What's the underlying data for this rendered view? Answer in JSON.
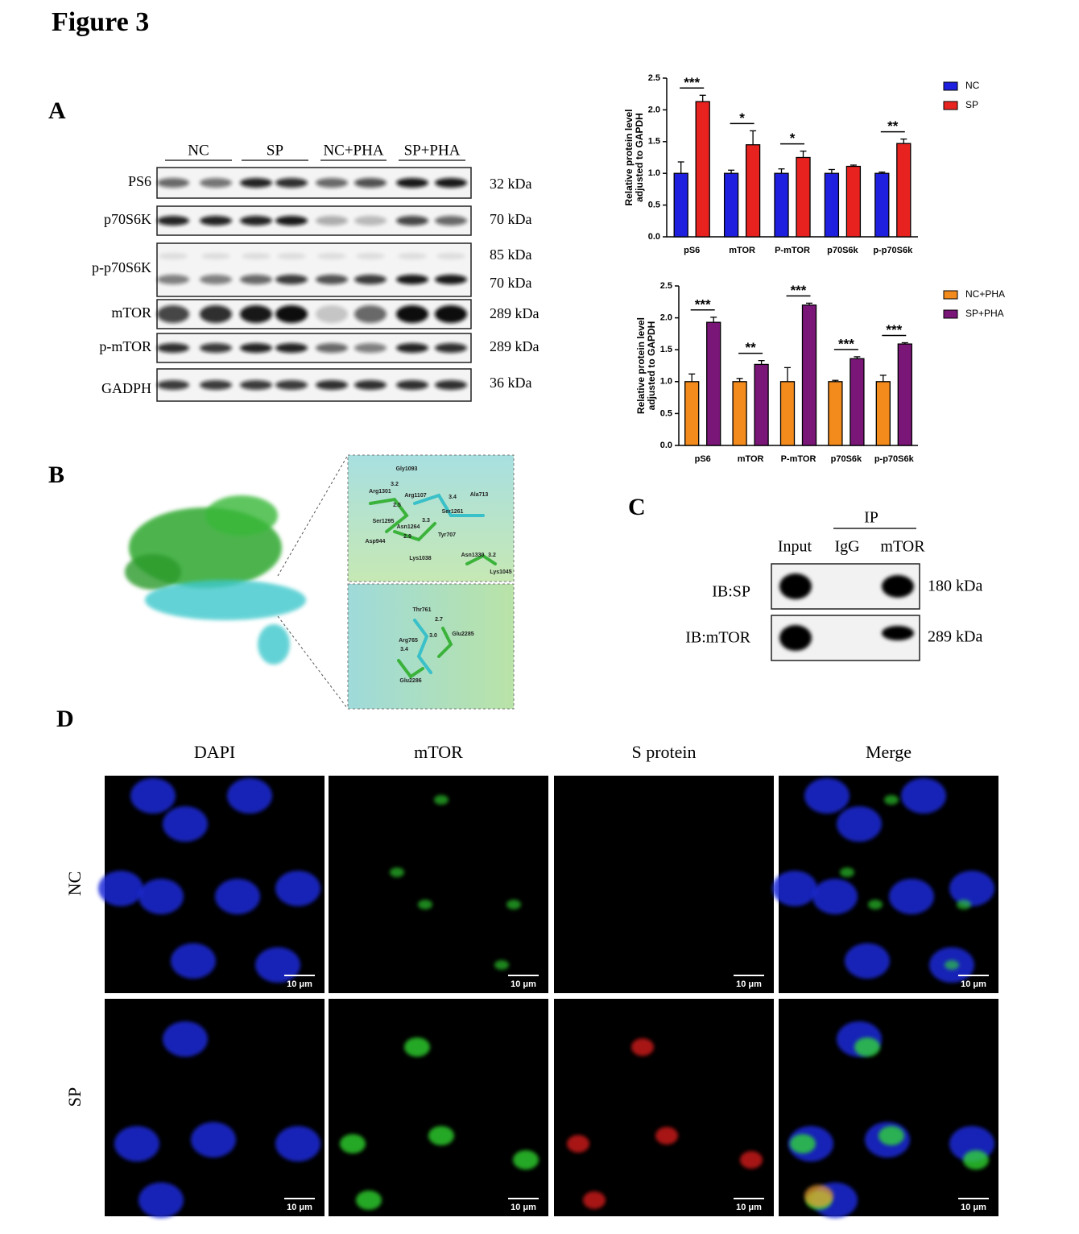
{
  "figure_title": "Figure 3",
  "panel_labels": [
    "A",
    "B",
    "C",
    "D"
  ],
  "blot": {
    "groups": [
      "NC",
      "SP",
      "NC+PHA",
      "SP+PHA"
    ],
    "rows": [
      "PS6",
      "p70S6K",
      "p-p70S6K",
      "mTOR",
      "p-mTOR",
      "GADPH"
    ],
    "sizes": [
      "32 kDa",
      "70 kDa",
      "85 kDa",
      "70 kDa",
      "289 kDa",
      "289 kDa",
      "36 kDa"
    ]
  },
  "chart_data": [
    {
      "type": "bar",
      "y_label": [
        "Relative protein level",
        "adjusted to GAPDH"
      ],
      "categories": [
        "pS6",
        "mTOR",
        "P-mTOR",
        "p70S6k",
        "p-p70S6k"
      ],
      "series": [
        {
          "name": "NC",
          "color": "#1f1fe0",
          "values": [
            1.0,
            1.0,
            1.0,
            1.0,
            1.0
          ],
          "errors": [
            0.18,
            0.05,
            0.07,
            0.06,
            0.02
          ]
        },
        {
          "name": "SP",
          "color": "#e8231f",
          "values": [
            2.13,
            1.45,
            1.25,
            1.11,
            1.47
          ],
          "errors": [
            0.1,
            0.22,
            0.1,
            0.02,
            0.07
          ]
        }
      ],
      "significance": [
        "***",
        "*",
        "*",
        null,
        "**"
      ],
      "ylim": [
        0,
        2.5
      ],
      "yticks": [
        {
          "value": 0,
          "label": "0.0"
        },
        {
          "value": 0.5,
          "label": "0.5"
        },
        {
          "value": 1,
          "label": "1.0"
        },
        {
          "value": 1.5,
          "label": "1.5"
        },
        {
          "value": 2,
          "label": "2.0"
        },
        {
          "value": 2.5,
          "label": "2.5"
        }
      ],
      "legend": "right"
    },
    {
      "type": "bar",
      "y_label": [
        "Relative protein level",
        "adjusted to GAPDH"
      ],
      "categories": [
        "pS6",
        "mTOR",
        "P-mTOR",
        "p70S6k",
        "p-p70S6k"
      ],
      "series": [
        {
          "name": "NC+PHA",
          "color": "#f28a1c",
          "values": [
            1.0,
            1.0,
            1.0,
            1.0,
            1.0
          ],
          "errors": [
            0.12,
            0.05,
            0.22,
            0.02,
            0.1
          ]
        },
        {
          "name": "SP+PHA",
          "color": "#7a1678",
          "values": [
            1.93,
            1.27,
            2.2,
            1.36,
            1.59
          ],
          "errors": [
            0.08,
            0.06,
            0.03,
            0.03,
            0.02
          ]
        }
      ],
      "significance": [
        "***",
        "**",
        "***",
        "***",
        "***"
      ],
      "ylim": [
        0,
        2.5
      ],
      "yticks": [
        {
          "value": 0,
          "label": "0.0"
        },
        {
          "value": 0.5,
          "label": "0.5"
        },
        {
          "value": 1,
          "label": "1.0"
        },
        {
          "value": 1.5,
          "label": "1.5"
        },
        {
          "value": 2,
          "label": "2.0"
        },
        {
          "value": 2.5,
          "label": "2.5"
        }
      ],
      "legend": "right"
    }
  ],
  "docking": {
    "top_residues": [
      "Gly1093",
      "Arg1301",
      "Arg1107",
      "Ala713",
      "Ser1261",
      "Ser1295",
      "Asn1264",
      "Tyr707",
      "Asp944",
      "Lys1038",
      "Asn1330",
      "Lys1045"
    ],
    "top_distances": [
      "3.2",
      "3.4",
      "2.5",
      "3.3",
      "2.9",
      "3.2"
    ],
    "bottom_residues": [
      "Thr761",
      "Glu2285",
      "Arg765",
      "Glu2286"
    ],
    "bottom_distances": [
      "2.7",
      "3.0",
      "3.4"
    ]
  },
  "coip": {
    "ip_label": "IP",
    "lanes": [
      "Input",
      "IgG",
      "mTOR"
    ],
    "rows": [
      "IB:SP",
      "IB:mTOR"
    ],
    "sizes": [
      "180 kDa",
      "289 kDa"
    ]
  },
  "if": {
    "columns": [
      "DAPI",
      "mTOR",
      "S protein",
      "Merge"
    ],
    "rows": [
      "NC",
      "SP"
    ],
    "scale_bar": "10 μm"
  }
}
